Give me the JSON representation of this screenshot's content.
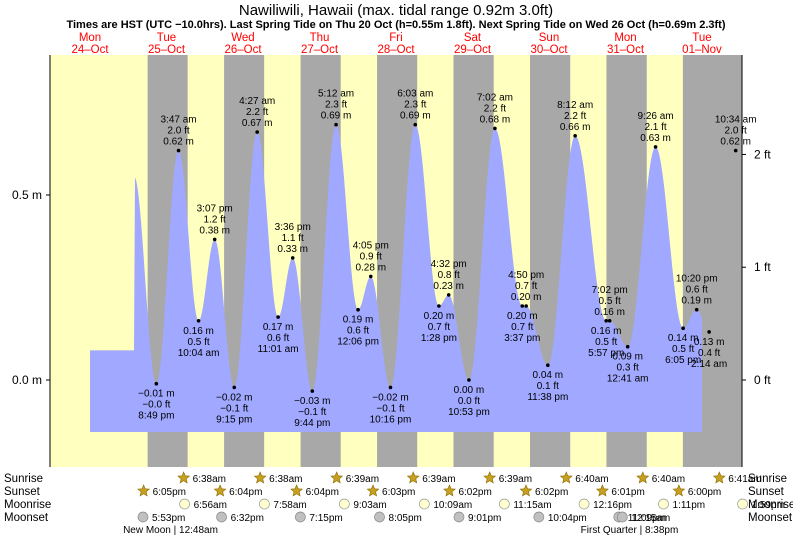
{
  "title": "Nawiliwili, Hawaii (max. tidal range 0.92m 3.0ft)",
  "subtitle": "Times are HST (UTC −10.0hrs). Last Spring Tide on Thu 20 Oct (h=0.55m 1.8ft). Next Spring Tide on Wed 26 Oct (h=0.69m 2.3ft)",
  "colors": {
    "day": "#ffffc0",
    "night": "#a8a8a8",
    "water": "#a0a8ff",
    "date_text": "#ff0000",
    "sun_icon": "#c8a020",
    "moon_icon": "#ffffd0",
    "moonset_icon": "#c0c0c0"
  },
  "days": [
    {
      "weekday": "Mon",
      "date": "24–Oct"
    },
    {
      "weekday": "Tue",
      "date": "25–Oct"
    },
    {
      "weekday": "Wed",
      "date": "26–Oct"
    },
    {
      "weekday": "Thu",
      "date": "27–Oct"
    },
    {
      "weekday": "Fri",
      "date": "28–Oct"
    },
    {
      "weekday": "Sat",
      "date": "29–Oct"
    },
    {
      "weekday": "Sun",
      "date": "30–Oct"
    },
    {
      "weekday": "Mon",
      "date": "31–Oct"
    },
    {
      "weekday": "Tue",
      "date": "01–Nov"
    }
  ],
  "chart_data": {
    "type": "area",
    "x_unit": "days since 24-Oct 00:00 HST",
    "x_range": [
      -0.15,
      8.35
    ],
    "ylim_m": [
      -0.14,
      0.88
    ],
    "ylim_ft": [
      -0.46,
      2.89
    ],
    "left_axis": {
      "unit": "m",
      "ticks": [
        {
          "v": 0.0,
          "label": "0.0 m"
        },
        {
          "v": 0.5,
          "label": "0.5 m"
        }
      ]
    },
    "right_axis": {
      "unit": "ft",
      "ticks": [
        {
          "v": 0,
          "label": "0 ft"
        },
        {
          "v": 1,
          "label": "1 ft"
        },
        {
          "v": 2,
          "label": "2 ft"
        }
      ]
    },
    "extremes": [
      {
        "day": 0,
        "time": "8:49 pm",
        "m": -0.01,
        "ft_label": "−0.0 ft",
        "m_label": "−0.01 m",
        "type": "low"
      },
      {
        "day": 1,
        "time": "3:47 am",
        "m": 0.62,
        "ft_label": "2.0 ft",
        "m_label": "0.62 m",
        "type": "high"
      },
      {
        "day": 1,
        "time": "10:04 am",
        "m": 0.16,
        "ft_label": "0.5 ft",
        "m_label": "0.16 m",
        "type": "low"
      },
      {
        "day": 1,
        "time": "3:07 pm",
        "m": 0.38,
        "ft_label": "1.2 ft",
        "m_label": "0.38 m",
        "type": "high"
      },
      {
        "day": 1,
        "time": "9:15 pm",
        "m": -0.02,
        "ft_label": "−0.1 ft",
        "m_label": "−0.02 m",
        "type": "low"
      },
      {
        "day": 2,
        "time": "4:27 am",
        "m": 0.67,
        "ft_label": "2.2 ft",
        "m_label": "0.67 m",
        "type": "high"
      },
      {
        "day": 2,
        "time": "11:01 am",
        "m": 0.17,
        "ft_label": "0.6 ft",
        "m_label": "0.17 m",
        "type": "low"
      },
      {
        "day": 2,
        "time": "3:36 pm",
        "m": 0.33,
        "ft_label": "1.1 ft",
        "m_label": "0.33 m",
        "type": "high"
      },
      {
        "day": 2,
        "time": "9:44 pm",
        "m": -0.03,
        "ft_label": "−0.1 ft",
        "m_label": "−0.03 m",
        "type": "low"
      },
      {
        "day": 3,
        "time": "5:12 am",
        "m": 0.69,
        "ft_label": "2.3 ft",
        "m_label": "0.69 m",
        "type": "high"
      },
      {
        "day": 3,
        "time": "12:06 pm",
        "m": 0.19,
        "ft_label": "0.6 ft",
        "m_label": "0.19 m",
        "type": "low"
      },
      {
        "day": 3,
        "time": "4:05 pm",
        "m": 0.28,
        "ft_label": "0.9 ft",
        "m_label": "0.28 m",
        "type": "high"
      },
      {
        "day": 3,
        "time": "10:16 pm",
        "m": -0.02,
        "ft_label": "−0.1 ft",
        "m_label": "−0.02 m",
        "type": "low"
      },
      {
        "day": 4,
        "time": "6:03 am",
        "m": 0.69,
        "ft_label": "2.3 ft",
        "m_label": "0.69 m",
        "type": "high"
      },
      {
        "day": 4,
        "time": "1:28 pm",
        "m": 0.2,
        "ft_label": "0.7 ft",
        "m_label": "0.20 m",
        "type": "low"
      },
      {
        "day": 4,
        "time": "4:32 pm",
        "m": 0.23,
        "ft_label": "0.8 ft",
        "m_label": "0.23 m",
        "type": "high"
      },
      {
        "day": 4,
        "time": "10:53 pm",
        "m": 0.0,
        "ft_label": "0.0 ft",
        "m_label": "0.00 m",
        "type": "low"
      },
      {
        "day": 5,
        "time": "7:02 am",
        "m": 0.68,
        "ft_label": "2.2 ft",
        "m_label": "0.68 m",
        "type": "high"
      },
      {
        "day": 5,
        "time": "3:37 pm",
        "m": 0.2,
        "ft_label": "0.7 ft",
        "m_label": "0.20 m",
        "type": "low"
      },
      {
        "day": 5,
        "time": "4:50 pm",
        "m": 0.2,
        "ft_label": "0.7 ft",
        "m_label": "0.20 m",
        "type": "high"
      },
      {
        "day": 5,
        "time": "11:38 pm",
        "m": 0.04,
        "ft_label": "0.1 ft",
        "m_label": "0.04 m",
        "type": "low"
      },
      {
        "day": 6,
        "time": "8:12 am",
        "m": 0.66,
        "ft_label": "2.2 ft",
        "m_label": "0.66 m",
        "type": "high"
      },
      {
        "day": 6,
        "time": "5:57 pm",
        "m": 0.16,
        "ft_label": "0.5 ft",
        "m_label": "0.16 m",
        "type": "low"
      },
      {
        "day": 6,
        "time": "7:02 pm",
        "m": 0.16,
        "ft_label": "0.5 ft",
        "m_label": "0.16 m",
        "type": "high"
      },
      {
        "day": 7,
        "time": "12:41 am",
        "m": 0.09,
        "ft_label": "0.3 ft",
        "m_label": "0.09 m",
        "type": "low"
      },
      {
        "day": 7,
        "time": "9:26 am",
        "m": 0.63,
        "ft_label": "2.1 ft",
        "m_label": "0.63 m",
        "type": "high"
      },
      {
        "day": 7,
        "time": "6:05 pm",
        "m": 0.14,
        "ft_label": "0.5 ft",
        "m_label": "0.14 m",
        "type": "low"
      },
      {
        "day": 7,
        "time": "10:20 pm",
        "m": 0.19,
        "ft_label": "0.6 ft",
        "m_label": "0.19 m",
        "type": "high"
      },
      {
        "day": 8,
        "time": "2:14 am",
        "m": 0.13,
        "ft_label": "0.4 ft",
        "m_label": "0.13 m",
        "type": "low"
      },
      {
        "day": 8,
        "time": "10:34 am",
        "m": 0.62,
        "ft_label": "2.0 ft",
        "m_label": "0.62 m",
        "type": "high"
      }
    ]
  },
  "row_labels": {
    "sunrise": "Sunrise",
    "sunset": "Sunset",
    "moonrise": "Moonrise",
    "moonset": "Moonset"
  },
  "sunrise": [
    {
      "day": 1,
      "time": "6:38am"
    },
    {
      "day": 2,
      "time": "6:38am"
    },
    {
      "day": 3,
      "time": "6:39am"
    },
    {
      "day": 4,
      "time": "6:39am"
    },
    {
      "day": 5,
      "time": "6:39am"
    },
    {
      "day": 6,
      "time": "6:40am"
    },
    {
      "day": 7,
      "time": "6:40am"
    },
    {
      "day": 8,
      "time": "6:41am"
    }
  ],
  "sunset": [
    {
      "day": 0,
      "time": "6:05pm"
    },
    {
      "day": 1,
      "time": "6:04pm"
    },
    {
      "day": 2,
      "time": "6:04pm"
    },
    {
      "day": 3,
      "time": "6:03pm"
    },
    {
      "day": 4,
      "time": "6:02pm"
    },
    {
      "day": 5,
      "time": "6:02pm"
    },
    {
      "day": 6,
      "time": "6:01pm"
    },
    {
      "day": 7,
      "time": "6:00pm"
    }
  ],
  "moonrise": [
    {
      "day": 1,
      "time": "6:56am"
    },
    {
      "day": 2,
      "time": "7:58am"
    },
    {
      "day": 3,
      "time": "9:03am"
    },
    {
      "day": 4,
      "time": "10:09am"
    },
    {
      "day": 5,
      "time": "11:15am"
    },
    {
      "day": 6,
      "time": "12:16pm"
    },
    {
      "day": 7,
      "time": "1:11pm"
    },
    {
      "day": 8,
      "time": "1:59pm"
    }
  ],
  "moonset": [
    {
      "day": 0,
      "time": "5:53pm"
    },
    {
      "day": 1,
      "time": "6:32pm"
    },
    {
      "day": 2,
      "time": "7:15pm"
    },
    {
      "day": 3,
      "time": "8:05pm"
    },
    {
      "day": 4,
      "time": "9:01pm"
    },
    {
      "day": 5,
      "time": "10:04pm"
    },
    {
      "day": 6,
      "time": "11:09pm"
    },
    {
      "day": 7,
      "time": "12:15am"
    }
  ],
  "moon_phases": [
    {
      "label": "New Moon | 12:48am",
      "day": 1
    },
    {
      "label": "First Quarter | 8:38pm",
      "day": 7
    }
  ]
}
